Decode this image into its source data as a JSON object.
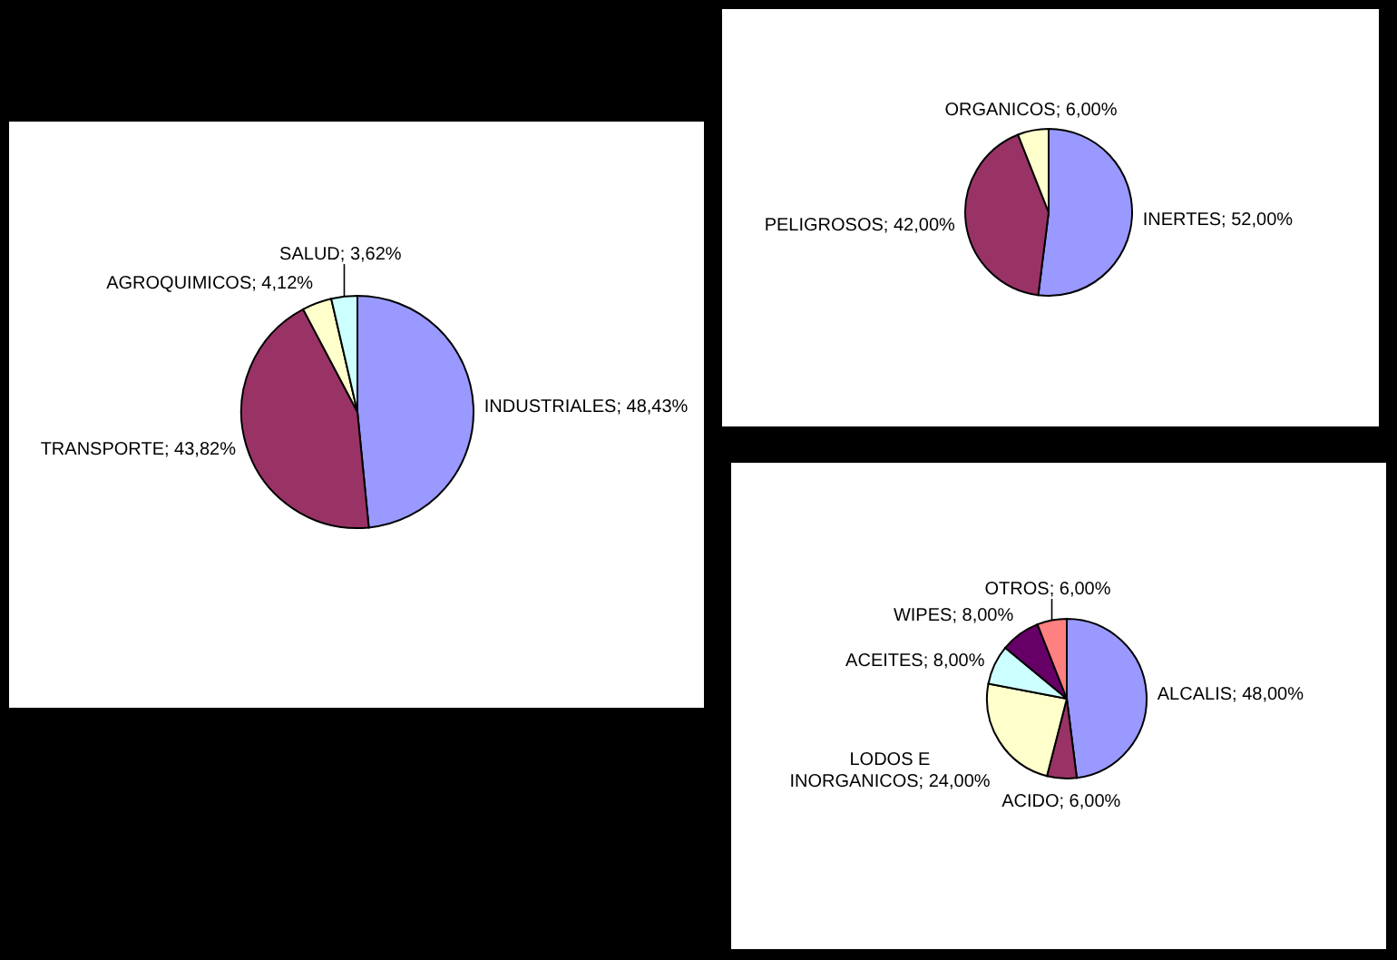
{
  "chart_data": [
    {
      "type": "pie",
      "categories": [
        "INDUSTRIALES",
        "TRANSPORTE",
        "AGROQUIMICOS",
        "SALUD"
      ],
      "values": [
        48.43,
        43.82,
        4.12,
        3.62
      ],
      "colors": [
        "#9999ff",
        "#993366",
        "#ffffcc",
        "#ccffff"
      ],
      "value_labels": [
        "48,43%",
        "43,82%",
        "4,12%",
        "3,62%"
      ]
    },
    {
      "type": "pie",
      "categories": [
        "INERTES",
        "PELIGROSOS",
        "ORGANICOS"
      ],
      "values": [
        52,
        42,
        6
      ],
      "colors": [
        "#9999ff",
        "#993366",
        "#ffffcc"
      ],
      "value_labels": [
        "52,00%",
        "42,00%",
        "6,00%"
      ]
    },
    {
      "type": "pie",
      "categories": [
        "ALCALIS",
        "ACIDO",
        "LODOS E INORGANICOS",
        "ACEITES",
        "WIPES",
        "OTROS"
      ],
      "values": [
        48,
        6,
        24,
        8,
        8,
        6
      ],
      "colors": [
        "#9999ff",
        "#993366",
        "#ffffcc",
        "#ccffff",
        "#660066",
        "#ff8080"
      ],
      "value_labels": [
        "48,00%",
        "6,00%",
        "24,00%",
        "8,00%",
        "8,00%",
        "6,00%"
      ]
    }
  ]
}
